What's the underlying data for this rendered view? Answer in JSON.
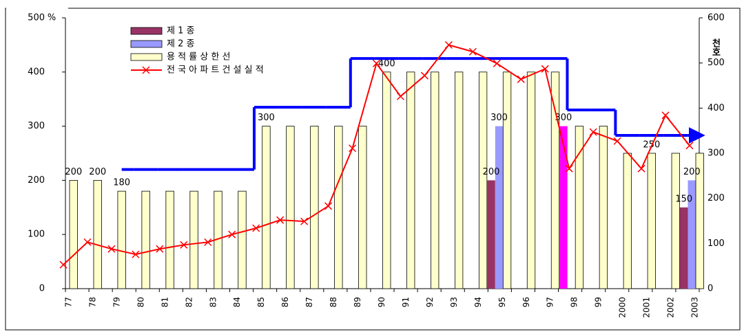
{
  "chart_data": {
    "type": "bar",
    "categories": [
      "77",
      "78",
      "79",
      "80",
      "81",
      "82",
      "83",
      "84",
      "85",
      "86",
      "87",
      "88",
      "89",
      "90",
      "91",
      "92",
      "93",
      "94",
      "95",
      "96",
      "97",
      "98",
      "99",
      "2000",
      "2001",
      "2002",
      "2003"
    ],
    "ylabel": "%",
    "y2label": "천호",
    "ylim": [
      0,
      500
    ],
    "yticks": [
      0,
      100,
      200,
      300,
      400,
      500
    ],
    "y2lim": [
      0,
      600
    ],
    "y2ticks": [
      0,
      100,
      200,
      300,
      400,
      500,
      600
    ],
    "series": [
      {
        "name": "제 1 종",
        "type": "bar",
        "color": "#993366",
        "colors": [
          "#993366",
          "#993366",
          "#993366",
          "#993366",
          "#993366",
          "#993366",
          "#993366",
          "#993366",
          "#993366",
          "#993366",
          "#993366",
          "#993366",
          "#993366",
          "#993366",
          "#993366",
          "#993366",
          "#993366",
          "#993366",
          "#993366",
          "#993366",
          "#993366",
          "#ff00ff",
          "#993366",
          "#993366",
          "#993366",
          "#993366",
          "#993366"
        ],
        "values": [
          null,
          null,
          null,
          null,
          null,
          null,
          null,
          null,
          null,
          null,
          null,
          null,
          null,
          null,
          null,
          null,
          null,
          null,
          200,
          null,
          null,
          300,
          null,
          null,
          null,
          null,
          150
        ]
      },
      {
        "name": "제 2 종",
        "type": "bar",
        "color": "#9999ff",
        "values": [
          null,
          null,
          null,
          null,
          null,
          null,
          null,
          null,
          null,
          null,
          null,
          null,
          null,
          null,
          null,
          null,
          null,
          null,
          300,
          null,
          null,
          null,
          null,
          null,
          null,
          null,
          200
        ]
      },
      {
        "name": "용 적 률 상 한 선",
        "type": "bar",
        "color": "#ffffcc",
        "values": [
          200,
          200,
          180,
          180,
          180,
          180,
          180,
          180,
          300,
          300,
          300,
          300,
          300,
          400,
          400,
          400,
          400,
          400,
          400,
          400,
          400,
          300,
          300,
          250,
          250,
          250,
          250
        ]
      },
      {
        "name": "전 국 아 파 트 건 설 실 적",
        "type": "line",
        "color": "#ff0000",
        "axis": "y2",
        "values": [
          53,
          103,
          88,
          76,
          88,
          97,
          103,
          120,
          134,
          152,
          149,
          183,
          311,
          499,
          426,
          472,
          540,
          525,
          499,
          464,
          487,
          266,
          347,
          327,
          266,
          384,
          317
        ]
      },
      {
        "type": "step",
        "color": "#0000ff",
        "values": [
          null,
          null,
          220,
          220,
          220,
          220,
          220,
          220,
          335,
          335,
          335,
          335,
          425,
          425,
          425,
          425,
          425,
          425,
          425,
          425,
          425,
          330,
          330,
          283,
          283,
          283,
          283
        ]
      }
    ]
  }
}
